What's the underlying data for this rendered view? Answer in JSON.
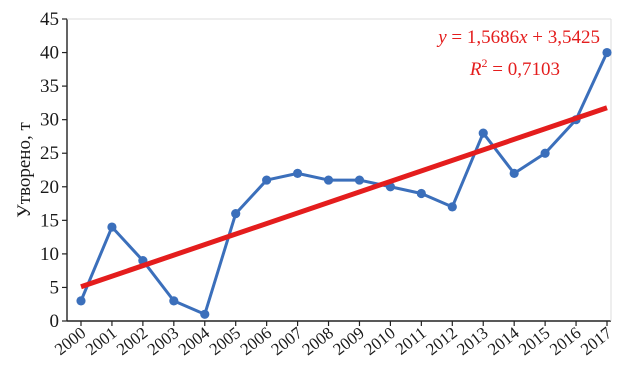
{
  "chart_data": {
    "type": "line",
    "ylabel": "Утворено, т",
    "xlabel": "",
    "x": [
      "2000",
      "2001",
      "2002",
      "2003",
      "2004",
      "2005",
      "2006",
      "2007",
      "2008",
      "2009",
      "2010",
      "2011",
      "2012",
      "2013",
      "2014",
      "2015",
      "2016",
      "2017"
    ],
    "series": [
      {
        "name": "",
        "color": "#3b6fbb",
        "values": [
          3,
          14,
          9,
          3,
          1,
          16,
          21,
          22,
          21,
          21,
          20,
          19,
          17,
          28,
          22,
          25,
          30,
          40
        ]
      }
    ],
    "trendline": {
      "slope": 1.5686,
      "intercept": 3.5425,
      "color": "#e41d1d"
    },
    "annotation": {
      "equation_lhs": "y",
      "equation_rhs": " = 1,5686",
      "equation_x": "x",
      "equation_tail": " + 3,5425",
      "r2_label": "R",
      "r2_sup": "2",
      "r2_value": " = 0,7103",
      "color": "#e41d1d"
    },
    "ylim": [
      0,
      45
    ],
    "yticks": [
      0,
      5,
      10,
      15,
      20,
      25,
      30,
      35,
      40,
      45
    ],
    "grid": false
  }
}
